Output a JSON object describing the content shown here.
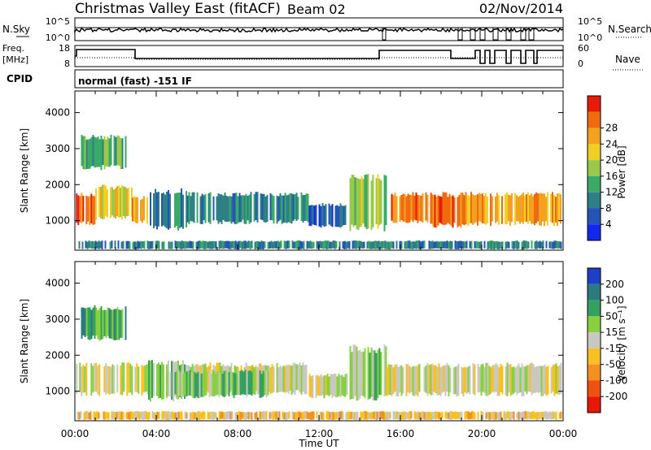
{
  "header": {
    "title": "Christmas Valley East (fitACF)",
    "beam": "Beam 02",
    "date": "02/Nov/2014"
  },
  "top_panels": {
    "nsky_label": "N.Sky",
    "nsky_ticks": [
      "10^5",
      "10^0"
    ],
    "nsearch_label": "N.Search",
    "nsearch_ticks": [
      "10^5",
      "10^0"
    ],
    "freq_label": [
      "Freq.",
      "[MHz]"
    ],
    "freq_ticks": [
      "18",
      "8"
    ],
    "nave_label": "Nave",
    "nave_ticks": [
      "60",
      "0"
    ],
    "cpid_label": "CPID",
    "cpid_text": "normal (fast) -151 IF"
  },
  "chart_data": [
    {
      "type": "heatmap",
      "name": "power",
      "ylabel": "Slant Range [km]",
      "xlabel": "Time UT",
      "xticks": [
        "00:00",
        "04:00",
        "08:00",
        "12:00",
        "16:00",
        "20:00",
        "00:00"
      ],
      "xlim_hours": [
        0,
        24
      ],
      "ylim_km": [
        180,
        4600
      ],
      "yticks": [
        1000,
        2000,
        3000,
        4000
      ],
      "colorbar": {
        "label": "Power [dB]",
        "ticks": [
          "4",
          "8",
          "12",
          "16",
          "20",
          "24",
          "28"
        ],
        "colors": [
          "#1028f0",
          "#2454b8",
          "#2f7f86",
          "#3aaa66",
          "#99c84a",
          "#f0d020",
          "#f4a020",
          "#f06a10",
          "#e81a08"
        ]
      },
      "regions": [
        {
          "t": [
            0.05,
            1.0
          ],
          "r": [
            850,
            1800
          ],
          "level": 7
        },
        {
          "t": [
            1.0,
            2.8
          ],
          "r": [
            1000,
            2000
          ],
          "level": 5
        },
        {
          "t": [
            2.8,
            3.6
          ],
          "r": [
            900,
            1700
          ],
          "level": 6
        },
        {
          "t": [
            0.3,
            2.5
          ],
          "r": [
            2400,
            3400
          ],
          "level": 3
        },
        {
          "t": [
            3.6,
            5.5
          ],
          "r": [
            700,
            1900
          ],
          "level": 2
        },
        {
          "t": [
            5.5,
            11.5
          ],
          "r": [
            900,
            1800
          ],
          "level": 2
        },
        {
          "t": [
            11.5,
            13.5
          ],
          "r": [
            800,
            1500
          ],
          "level": 1
        },
        {
          "t": [
            13.5,
            15.3
          ],
          "r": [
            700,
            2300
          ],
          "level": 4
        },
        {
          "t": [
            15.3,
            17.5
          ],
          "r": [
            900,
            1800
          ],
          "level": 7
        },
        {
          "t": [
            17.5,
            19.2
          ],
          "r": [
            800,
            1800
          ],
          "level": 7
        },
        {
          "t": [
            19.2,
            23.9
          ],
          "r": [
            850,
            1800
          ],
          "level": 6
        },
        {
          "t": [
            0.1,
            23.9
          ],
          "r": [
            200,
            450
          ],
          "level": 2
        }
      ]
    },
    {
      "type": "heatmap",
      "name": "velocity",
      "ylabel": "Slant Range [km]",
      "xlabel": "Time UT",
      "xticks": [
        "00:00",
        "04:00",
        "08:00",
        "12:00",
        "16:00",
        "20:00",
        "00:00"
      ],
      "xlim_hours": [
        0,
        24
      ],
      "ylim_km": [
        180,
        4600
      ],
      "yticks": [
        1000,
        2000,
        3000,
        4000
      ],
      "colorbar": {
        "label": "Velocity [m s⁻¹]",
        "ticks": [
          "200",
          "100",
          "50",
          "15",
          "-15",
          "-50",
          "-100",
          "-200"
        ],
        "colors": [
          "#1e40c8",
          "#2a7a80",
          "#35a060",
          "#88d040",
          "#c8c8c0",
          "#f8c020",
          "#f49020",
          "#f05010",
          "#e81808"
        ]
      },
      "regions": [
        {
          "t": [
            0.05,
            3.6
          ],
          "r": [
            850,
            1800
          ],
          "level": 4
        },
        {
          "t": [
            0.3,
            2.5
          ],
          "r": [
            2400,
            3400
          ],
          "level": 2
        },
        {
          "t": [
            3.6,
            5.5
          ],
          "r": [
            700,
            1900
          ],
          "level": 3
        },
        {
          "t": [
            5.5,
            11.5
          ],
          "r": [
            900,
            1800
          ],
          "level": 4
        },
        {
          "t": [
            4.5,
            9.5
          ],
          "r": [
            800,
            1600
          ],
          "level": 3
        },
        {
          "t": [
            11.5,
            13.5
          ],
          "r": [
            800,
            1500
          ],
          "level": 4
        },
        {
          "t": [
            13.5,
            15.3
          ],
          "r": [
            700,
            2300
          ],
          "level": 3
        },
        {
          "t": [
            15.3,
            23.9
          ],
          "r": [
            850,
            1800
          ],
          "level": 4
        },
        {
          "t": [
            0.1,
            23.9
          ],
          "r": [
            200,
            450
          ],
          "level": 5
        }
      ]
    }
  ]
}
